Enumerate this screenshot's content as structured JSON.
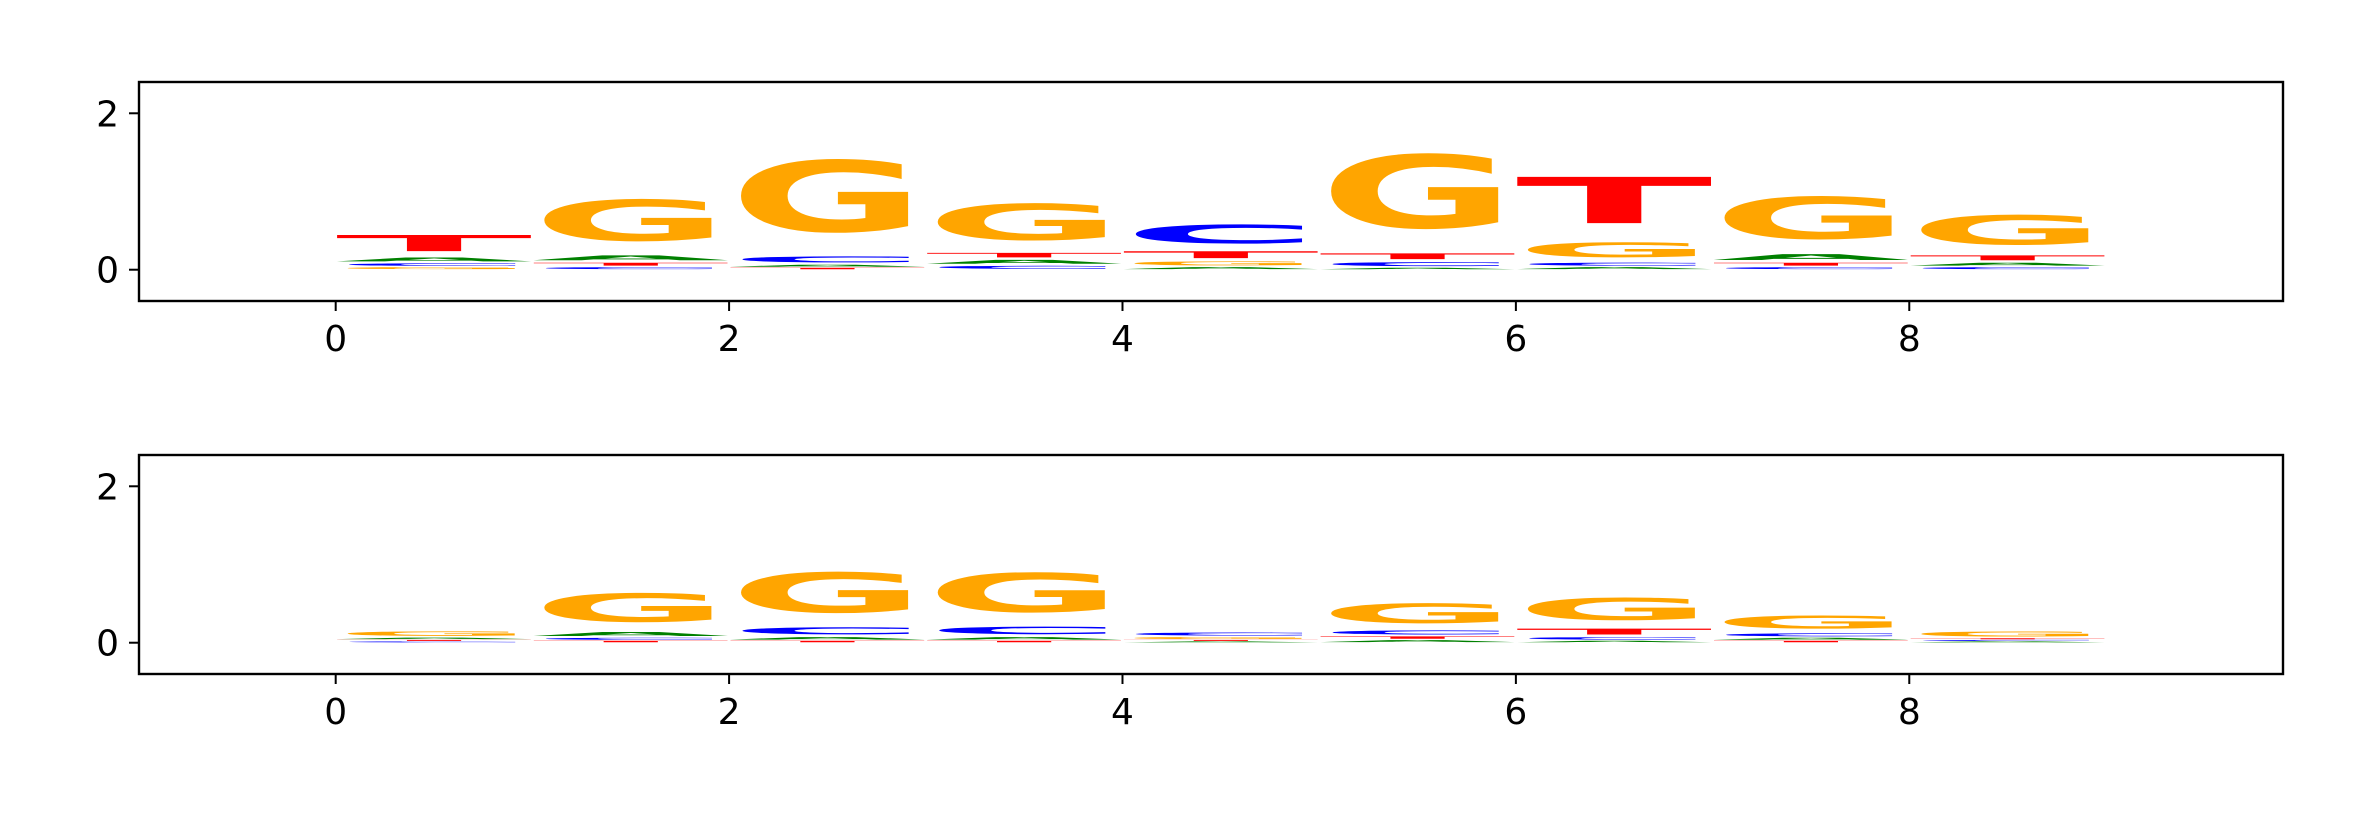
{
  "chart_data": [
    {
      "type": "sequence-logo",
      "alphabet": [
        "A",
        "C",
        "G",
        "T"
      ],
      "colors": {
        "A": "#008000",
        "C": "#0000ff",
        "G": "#ffa500",
        "T": "#ff0000"
      },
      "xlim": [
        -1.0,
        9.9
      ],
      "ylim": [
        -0.4,
        2.4
      ],
      "xticks": [
        0,
        2,
        4,
        6,
        8
      ],
      "yticks": [
        0,
        2
      ],
      "grid": false,
      "positions": [
        {
          "A": 0.08,
          "C": 0.05,
          "G": 0.04,
          "T": 0.33
        },
        {
          "A": 0.1,
          "C": 0.04,
          "G": 0.84,
          "T": 0.06
        },
        {
          "A": 0.04,
          "C": 0.12,
          "G": 1.46,
          "T": 0.03
        },
        {
          "A": 0.08,
          "C": 0.06,
          "G": 0.74,
          "T": 0.09
        },
        {
          "A": 0.04,
          "C": 0.38,
          "G": 0.08,
          "T": 0.14
        },
        {
          "A": 0.03,
          "C": 0.08,
          "G": 1.5,
          "T": 0.12
        },
        {
          "A": 0.04,
          "C": 0.06,
          "G": 0.3,
          "T": 0.95
        },
        {
          "A": 0.12,
          "C": 0.04,
          "G": 0.86,
          "T": 0.06
        },
        {
          "A": 0.06,
          "C": 0.04,
          "G": 0.6,
          "T": 0.1
        }
      ]
    },
    {
      "type": "sequence-logo",
      "alphabet": [
        "A",
        "C",
        "G",
        "T"
      ],
      "colors": {
        "A": "#008000",
        "C": "#0000ff",
        "G": "#ffa500",
        "T": "#ff0000"
      },
      "xlim": [
        -1.0,
        9.9
      ],
      "ylim": [
        -0.4,
        2.4
      ],
      "xticks": [
        0,
        2,
        4,
        6,
        8
      ],
      "yticks": [
        0,
        2
      ],
      "grid": false,
      "positions": [
        {
          "A": 0.03,
          "C": 0.02,
          "G": 0.09,
          "T": 0.02
        },
        {
          "A": 0.08,
          "C": 0.04,
          "G": 0.58,
          "T": 0.03
        },
        {
          "A": 0.05,
          "C": 0.14,
          "G": 0.82,
          "T": 0.03
        },
        {
          "A": 0.05,
          "C": 0.15,
          "G": 0.8,
          "T": 0.03
        },
        {
          "A": 0.02,
          "C": 0.06,
          "G": 0.04,
          "T": 0.02
        },
        {
          "A": 0.04,
          "C": 0.08,
          "G": 0.4,
          "T": 0.05
        },
        {
          "A": 0.03,
          "C": 0.05,
          "G": 0.45,
          "T": 0.12
        },
        {
          "A": 0.04,
          "C": 0.06,
          "G": 0.26,
          "T": 0.03
        },
        {
          "A": 0.02,
          "C": 0.02,
          "G": 0.1,
          "T": 0.02
        }
      ]
    }
  ]
}
